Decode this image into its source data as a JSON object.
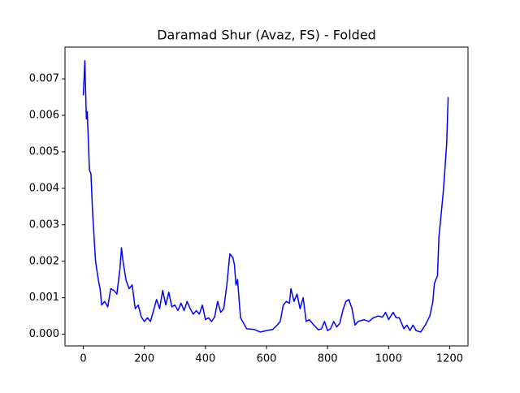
{
  "chart_data": {
    "type": "line",
    "title": "Daramad Shur (Avaz, FS) - Folded",
    "x": [
      0,
      5,
      10,
      13,
      20,
      25,
      30,
      40,
      50,
      55,
      60,
      70,
      80,
      90,
      100,
      110,
      120,
      125,
      130,
      140,
      150,
      160,
      170,
      180,
      190,
      200,
      210,
      220,
      230,
      240,
      250,
      260,
      270,
      280,
      290,
      300,
      310,
      320,
      330,
      340,
      350,
      360,
      370,
      380,
      390,
      400,
      410,
      420,
      430,
      440,
      450,
      460,
      470,
      480,
      490,
      495,
      500,
      505,
      515,
      525,
      535,
      560,
      580,
      600,
      620,
      635,
      645,
      655,
      665,
      675,
      680,
      690,
      700,
      710,
      720,
      730,
      740,
      755,
      770,
      780,
      790,
      800,
      810,
      820,
      830,
      840,
      850,
      860,
      870,
      880,
      890,
      900,
      920,
      935,
      950,
      965,
      980,
      990,
      1000,
      1015,
      1025,
      1035,
      1050,
      1060,
      1070,
      1080,
      1090,
      1105,
      1120,
      1135,
      1145,
      1150,
      1160,
      1165,
      1170,
      1180,
      1190,
      1195
    ],
    "series": [
      {
        "name": "Folded",
        "color": "#0000ff",
        "values": [
          0.00655,
          0.0075,
          0.0059,
          0.0061,
          0.0045,
          0.0044,
          0.0034,
          0.002,
          0.00145,
          0.00125,
          0.0008,
          0.0009,
          0.00075,
          0.00125,
          0.0012,
          0.0011,
          0.0018,
          0.00237,
          0.002,
          0.00148,
          0.00125,
          0.00135,
          0.0007,
          0.0008,
          0.00047,
          0.00035,
          0.00045,
          0.00035,
          0.00065,
          0.00095,
          0.0007,
          0.0012,
          0.0008,
          0.00115,
          0.00075,
          0.0008,
          0.00065,
          0.00085,
          0.00065,
          0.0009,
          0.0007,
          0.00055,
          0.00065,
          0.00055,
          0.0008,
          0.0004,
          0.00045,
          0.00035,
          0.00047,
          0.0009,
          0.0006,
          0.0007,
          0.00135,
          0.0022,
          0.0021,
          0.0019,
          0.00135,
          0.0015,
          0.00045,
          0.0003,
          0.00015,
          0.00013,
          6e-05,
          0.0001,
          0.00013,
          0.00025,
          0.00035,
          0.0008,
          0.0009,
          0.00085,
          0.00125,
          0.0009,
          0.0011,
          0.0007,
          0.001,
          0.00035,
          0.0004,
          0.00025,
          0.00012,
          0.00015,
          0.00035,
          0.0001,
          0.00015,
          0.00035,
          0.0002,
          0.0003,
          0.00065,
          0.0009,
          0.00095,
          0.0007,
          0.00025,
          0.00035,
          0.0004,
          0.00035,
          0.00045,
          0.0005,
          0.00047,
          0.0006,
          0.0004,
          0.0006,
          0.00045,
          0.00045,
          0.00015,
          0.00025,
          0.0001,
          0.00025,
          0.0001,
          6e-05,
          0.00025,
          0.0005,
          0.0009,
          0.0014,
          0.0016,
          0.0027,
          0.0031,
          0.004,
          0.0052,
          0.0065
        ]
      }
    ],
    "xlim": [
      -60,
      1260
    ],
    "xticks": [
      0,
      200,
      400,
      600,
      800,
      1000,
      1200
    ],
    "ylim": [
      -0.00032,
      0.00787
    ],
    "yticks": [
      {
        "value": 0,
        "label": "0.000"
      },
      {
        "value": 0.001,
        "label": "0.001"
      },
      {
        "value": 0.002,
        "label": "0.002"
      },
      {
        "value": 0.003,
        "label": "0.003"
      },
      {
        "value": 0.004,
        "label": "0.004"
      },
      {
        "value": 0.005,
        "label": "0.005"
      },
      {
        "value": 0.006,
        "label": "0.006"
      },
      {
        "value": 0.007,
        "label": "0.007"
      }
    ],
    "grid": false
  }
}
